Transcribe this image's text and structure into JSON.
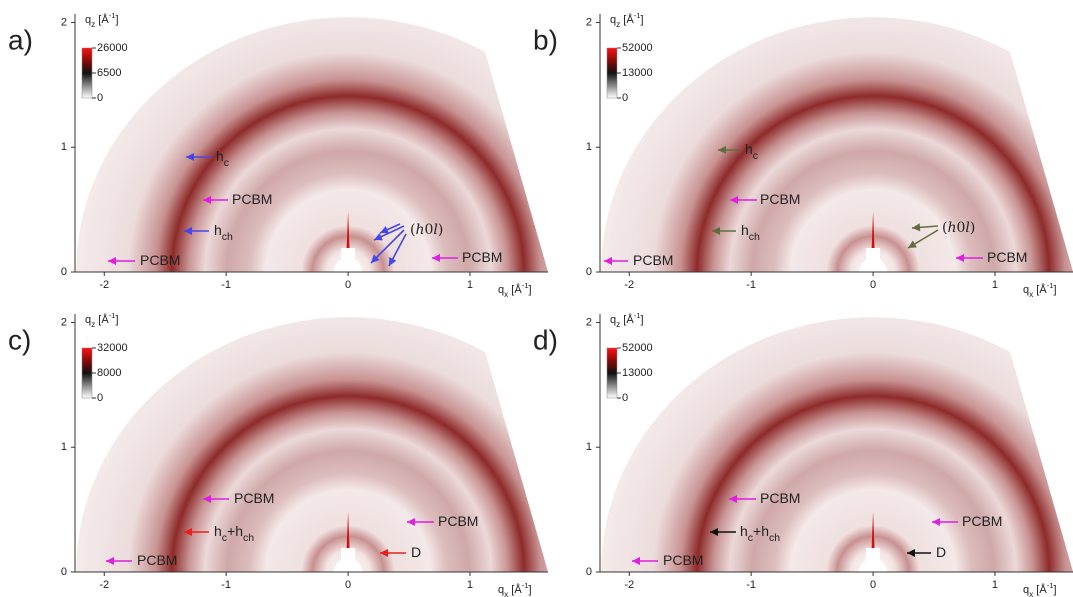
{
  "chart_data": [
    {
      "type": "image",
      "panel_label": "a)",
      "xlabel": [
        {
          "text": "q"
        },
        {
          "text": "x",
          "sub": true
        },
        {
          "text": " [Å"
        },
        {
          "text": "-1",
          "sup": true
        },
        {
          "text": "]"
        }
      ],
      "ylabel": [
        {
          "text": "q"
        },
        {
          "text": "z",
          "sub": true
        },
        {
          "text": " [Å"
        },
        {
          "text": "-1",
          "sup": true
        },
        {
          "text": "]"
        }
      ],
      "xlim": [
        -2.24,
        1.64
      ],
      "ylim": [
        0,
        2.1
      ],
      "xticks": [
        -2,
        -1,
        0,
        1
      ],
      "yticks": [
        0,
        1,
        2
      ],
      "colorbar": {
        "clim": [
          0,
          26000
        ],
        "ticks": [
          0,
          6500,
          26000
        ],
        "scale": "sqrt"
      },
      "annotations": [
        {
          "parts": [
            {
              "text": "h"
            },
            {
              "text": "c",
              "sub": true
            }
          ],
          "color": "#4646e6"
        },
        {
          "parts": [
            {
              "text": "PCBM"
            }
          ],
          "color": "#e01ee0"
        },
        {
          "parts": [
            {
              "text": "h"
            },
            {
              "text": "ch",
              "sub": true
            }
          ],
          "color": "#4646e6"
        },
        {
          "parts": [
            {
              "text": "PCBM"
            }
          ],
          "color": "#e01ee0"
        },
        {
          "parts": [
            {
              "text": "("
            },
            {
              "text": "h",
              "italic": true
            },
            {
              "text": "0"
            },
            {
              "text": "l",
              "italic": true
            },
            {
              "text": ")"
            }
          ],
          "color": "#4646e6"
        },
        {
          "parts": [
            {
              "text": "PCBM"
            }
          ],
          "color": "#e01ee0"
        }
      ]
    },
    {
      "type": "image",
      "panel_label": "b)",
      "xlabel": [
        {
          "text": "q"
        },
        {
          "text": "x",
          "sub": true
        },
        {
          "text": " [Å"
        },
        {
          "text": "-1",
          "sup": true
        },
        {
          "text": "]"
        }
      ],
      "ylabel": [
        {
          "text": "q"
        },
        {
          "text": "z",
          "sub": true
        },
        {
          "text": " [Å"
        },
        {
          "text": "-1",
          "sup": true
        },
        {
          "text": "]"
        }
      ],
      "xlim": [
        -2.24,
        1.64
      ],
      "ylim": [
        0,
        2.1
      ],
      "xticks": [
        -2,
        -1,
        0,
        1
      ],
      "yticks": [
        0,
        1,
        2
      ],
      "colorbar": {
        "clim": [
          0,
          52000
        ],
        "ticks": [
          0,
          13000,
          52000
        ],
        "scale": "sqrt"
      },
      "annotations": [
        {
          "parts": [
            {
              "text": "h"
            },
            {
              "text": "c",
              "sub": true
            }
          ],
          "color": "#5f6e3e"
        },
        {
          "parts": [
            {
              "text": "PCBM"
            }
          ],
          "color": "#e01ee0"
        },
        {
          "parts": [
            {
              "text": "h"
            },
            {
              "text": "ch",
              "sub": true
            }
          ],
          "color": "#5f6e3e"
        },
        {
          "parts": [
            {
              "text": "PCBM"
            }
          ],
          "color": "#e01ee0"
        },
        {
          "parts": [
            {
              "text": "("
            },
            {
              "text": "h",
              "italic": true
            },
            {
              "text": "0"
            },
            {
              "text": "l",
              "italic": true
            },
            {
              "text": ")"
            }
          ],
          "color": "#5f6e3e"
        },
        {
          "parts": [
            {
              "text": "PCBM"
            }
          ],
          "color": "#e01ee0"
        }
      ]
    },
    {
      "type": "image",
      "panel_label": "c)",
      "xlabel": [
        {
          "text": "q"
        },
        {
          "text": "x",
          "sub": true
        },
        {
          "text": " [Å"
        },
        {
          "text": "-1",
          "sup": true
        },
        {
          "text": "]"
        }
      ],
      "ylabel": [
        {
          "text": "q"
        },
        {
          "text": "z",
          "sub": true
        },
        {
          "text": " [Å"
        },
        {
          "text": "-1",
          "sup": true
        },
        {
          "text": "]"
        }
      ],
      "xlim": [
        -2.24,
        1.64
      ],
      "ylim": [
        0,
        2.1
      ],
      "xticks": [
        -2,
        -1,
        0,
        1
      ],
      "yticks": [
        0,
        1,
        2
      ],
      "colorbar": {
        "clim": [
          0,
          32000
        ],
        "ticks": [
          0,
          8000,
          32000
        ],
        "scale": "sqrt"
      },
      "annotations": [
        {
          "parts": [
            {
              "text": "PCBM"
            }
          ],
          "color": "#e01ee0"
        },
        {
          "parts": [
            {
              "text": "h"
            },
            {
              "text": "c",
              "sub": true
            },
            {
              "text": "+h"
            },
            {
              "text": "ch",
              "sub": true
            }
          ],
          "color": "#e8201e"
        },
        {
          "parts": [
            {
              "text": "PCBM"
            }
          ],
          "color": "#e01ee0"
        },
        {
          "parts": [
            {
              "text": "PCBM"
            }
          ],
          "color": "#e01ee0"
        },
        {
          "parts": [
            {
              "text": "D"
            }
          ],
          "color": "#e8201e"
        }
      ]
    },
    {
      "type": "image",
      "panel_label": "d)",
      "xlabel": [
        {
          "text": "q"
        },
        {
          "text": "x",
          "sub": true
        },
        {
          "text": " [Å"
        },
        {
          "text": "-1",
          "sup": true
        },
        {
          "text": "]"
        }
      ],
      "ylabel": [
        {
          "text": "q"
        },
        {
          "text": "z",
          "sub": true
        },
        {
          "text": " [Å"
        },
        {
          "text": "-1",
          "sup": true
        },
        {
          "text": "]"
        }
      ],
      "xlim": [
        -2.24,
        1.64
      ],
      "ylim": [
        0,
        2.1
      ],
      "xticks": [
        -2,
        -1,
        0,
        1
      ],
      "yticks": [
        0,
        1,
        2
      ],
      "colorbar": {
        "clim": [
          0,
          52000
        ],
        "ticks": [
          0,
          13000,
          52000
        ],
        "scale": "sqrt"
      },
      "annotations": [
        {
          "parts": [
            {
              "text": "PCBM"
            }
          ],
          "color": "#e01ee0"
        },
        {
          "parts": [
            {
              "text": "h"
            },
            {
              "text": "c",
              "sub": true
            },
            {
              "text": "+h"
            },
            {
              "text": "ch",
              "sub": true
            }
          ],
          "color": "#111111"
        },
        {
          "parts": [
            {
              "text": "PCBM"
            }
          ],
          "color": "#e01ee0"
        },
        {
          "parts": [
            {
              "text": "PCBM"
            }
          ],
          "color": "#e01ee0"
        },
        {
          "parts": [
            {
              "text": "D"
            }
          ],
          "color": "#111111"
        }
      ]
    }
  ]
}
